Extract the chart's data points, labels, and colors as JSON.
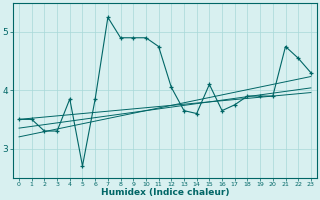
{
  "xlabel": "Humidex (Indice chaleur)",
  "x_values": [
    0,
    1,
    2,
    3,
    4,
    5,
    6,
    7,
    8,
    9,
    10,
    11,
    12,
    13,
    14,
    15,
    16,
    17,
    18,
    19,
    20,
    21,
    22,
    23
  ],
  "main_line_y": [
    3.5,
    3.5,
    3.3,
    3.3,
    3.85,
    2.7,
    3.85,
    5.25,
    4.9,
    4.9,
    4.9,
    4.75,
    4.05,
    3.65,
    3.6,
    4.1,
    3.65,
    3.75,
    3.9,
    3.9,
    3.9,
    4.75,
    4.55,
    4.3
  ],
  "trend1_y": [
    3.35,
    3.38,
    3.41,
    3.44,
    3.47,
    3.5,
    3.53,
    3.56,
    3.59,
    3.62,
    3.65,
    3.68,
    3.71,
    3.74,
    3.77,
    3.8,
    3.83,
    3.86,
    3.89,
    3.92,
    3.95,
    3.98,
    4.01,
    4.04
  ],
  "trend2_y": [
    3.2,
    3.245,
    3.29,
    3.335,
    3.38,
    3.425,
    3.47,
    3.515,
    3.56,
    3.605,
    3.65,
    3.695,
    3.74,
    3.785,
    3.83,
    3.875,
    3.92,
    3.965,
    4.01,
    4.055,
    4.1,
    4.145,
    4.19,
    4.235
  ],
  "trend3_y": [
    3.5,
    3.52,
    3.54,
    3.56,
    3.58,
    3.6,
    3.62,
    3.64,
    3.66,
    3.68,
    3.7,
    3.72,
    3.74,
    3.76,
    3.78,
    3.8,
    3.82,
    3.84,
    3.86,
    3.88,
    3.9,
    3.92,
    3.94,
    3.96
  ],
  "line_color": "#006666",
  "bg_color": "#d8f0f0",
  "grid_color": "#a8d8d8",
  "ylim": [
    2.5,
    5.5
  ],
  "yticks": [
    3,
    4,
    5
  ],
  "xlim": [
    -0.5,
    23.5
  ]
}
